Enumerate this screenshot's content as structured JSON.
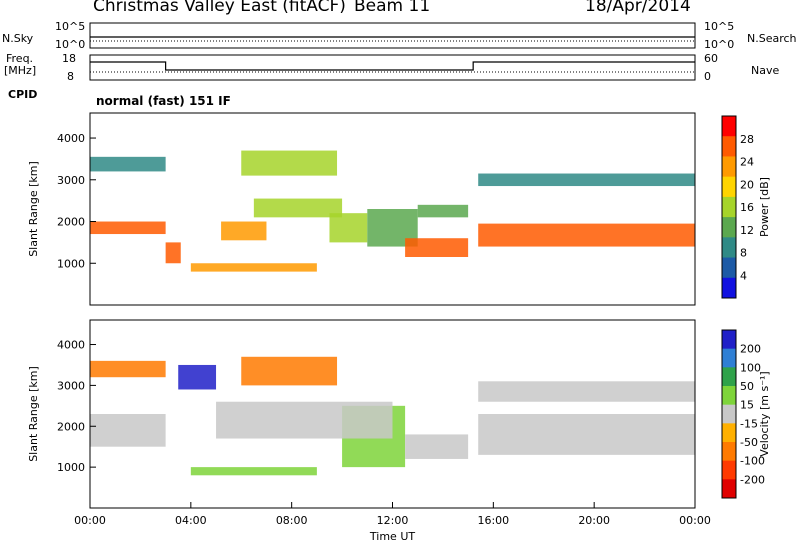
{
  "header": {
    "radar": "Christmas Valley East (fitACF)",
    "beam": "Beam 11",
    "date": "18/Apr/2014"
  },
  "left_labels": {
    "nsky": "N.Sky",
    "freq_line1": "Freq.",
    "freq_line2": "[MHz]",
    "cpid": "CPID"
  },
  "right_labels": {
    "nsearch": "N.Search",
    "nave": "Nave"
  },
  "nsky_axis": {
    "top": "10^5",
    "bottom": "10^0"
  },
  "freq_axis": {
    "top": "18",
    "bottom": "8"
  },
  "nave_axis": {
    "top": "60",
    "bottom": "0"
  },
  "cpid_text": "normal (fast) 151 IF",
  "chart_data": [
    {
      "type": "heatmap",
      "name": "power",
      "ylabel": "Slant Range [km]",
      "y_ticks": [
        1000,
        2000,
        3000,
        4000
      ],
      "ylim": [
        0,
        4600
      ],
      "xlim": [
        0,
        24
      ],
      "colorbar": {
        "label": "Power [dB]",
        "ticks": [
          "28",
          "24",
          "20",
          "16",
          "12",
          "8",
          "4"
        ],
        "colors": [
          "#ff0000",
          "#ff5a00",
          "#ff9a00",
          "#ffd400",
          "#a6d42a",
          "#5ba84f",
          "#2f8a86",
          "#1c5aa6",
          "#1111e0"
        ]
      },
      "bands": [
        {
          "x": [
            0,
            3
          ],
          "y": [
            1700,
            2000
          ],
          "level": 0.9
        },
        {
          "x": [
            0,
            3
          ],
          "y": [
            3200,
            3550
          ],
          "level": 0.2
        },
        {
          "x": [
            3,
            3.6
          ],
          "y": [
            1000,
            1500
          ],
          "level": 0.9
        },
        {
          "x": [
            5.2,
            7
          ],
          "y": [
            1550,
            2000
          ],
          "level": 0.8
        },
        {
          "x": [
            6,
            9.8
          ],
          "y": [
            3100,
            3700
          ],
          "level": 0.55
        },
        {
          "x": [
            6.5,
            10
          ],
          "y": [
            2100,
            2550
          ],
          "level": 0.5
        },
        {
          "x": [
            4,
            9
          ],
          "y": [
            800,
            1000
          ],
          "level": 0.75
        },
        {
          "x": [
            9.5,
            11
          ],
          "y": [
            1500,
            2200
          ],
          "level": 0.45
        },
        {
          "x": [
            11,
            13
          ],
          "y": [
            1400,
            2300
          ],
          "level": 0.35
        },
        {
          "x": [
            12.5,
            15
          ],
          "y": [
            1150,
            1600
          ],
          "level": 0.9
        },
        {
          "x": [
            13,
            15
          ],
          "y": [
            2100,
            2400
          ],
          "level": 0.4
        },
        {
          "x": [
            15.4,
            24
          ],
          "y": [
            1400,
            1950
          ],
          "level": 0.9
        },
        {
          "x": [
            15.4,
            24
          ],
          "y": [
            2850,
            3150
          ],
          "level": 0.2
        }
      ]
    },
    {
      "type": "heatmap",
      "name": "velocity",
      "ylabel": "Slant Range [km]",
      "y_ticks": [
        1000,
        2000,
        3000,
        4000
      ],
      "ylim": [
        0,
        4600
      ],
      "xlabel": "Time UT",
      "x_ticks": [
        "00:00",
        "04:00",
        "08:00",
        "12:00",
        "16:00",
        "20:00",
        "00:00"
      ],
      "xlim": [
        0,
        24
      ],
      "colorbar": {
        "label": "Velocity [m s⁻¹]",
        "ticks": [
          "200",
          "100",
          "50",
          "15",
          "-15",
          "-50",
          "-100",
          "-200"
        ],
        "colors": [
          "#2020c8",
          "#2f7fd4",
          "#2fa24a",
          "#7ed43a",
          "#c8c8c8",
          "#ffb000",
          "#ff7a00",
          "#ff3a00",
          "#e00000"
        ]
      },
      "bands": [
        {
          "x": [
            0,
            3
          ],
          "y": [
            1500,
            2300
          ],
          "level": 4
        },
        {
          "x": [
            0,
            3
          ],
          "y": [
            3200,
            3600
          ],
          "level": 6
        },
        {
          "x": [
            3.5,
            5
          ],
          "y": [
            2900,
            3500
          ],
          "level": 0
        },
        {
          "x": [
            6,
            9.8
          ],
          "y": [
            3000,
            3700
          ],
          "level": 6
        },
        {
          "x": [
            4,
            9
          ],
          "y": [
            800,
            1000
          ],
          "level": 3
        },
        {
          "x": [
            10,
            12.5
          ],
          "y": [
            1000,
            2500
          ],
          "level": 3
        },
        {
          "x": [
            5,
            12
          ],
          "y": [
            1700,
            2600
          ],
          "level": 4
        },
        {
          "x": [
            12.5,
            15
          ],
          "y": [
            1200,
            1800
          ],
          "level": 4
        },
        {
          "x": [
            15.4,
            24
          ],
          "y": [
            1300,
            2300
          ],
          "level": 4
        },
        {
          "x": [
            15.4,
            24
          ],
          "y": [
            2600,
            3100
          ],
          "level": 4
        }
      ]
    }
  ]
}
